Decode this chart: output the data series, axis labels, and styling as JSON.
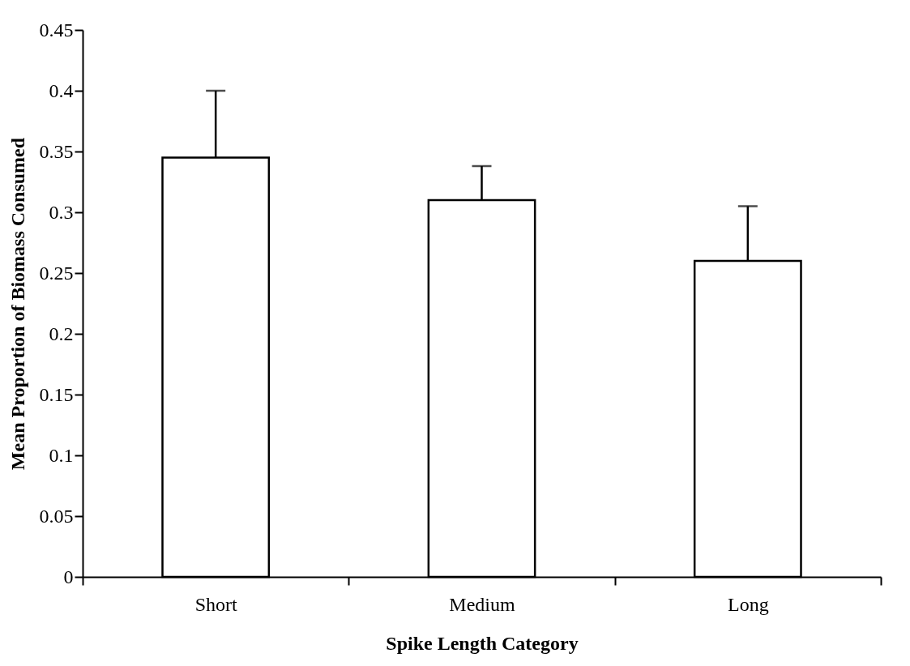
{
  "chart_data": {
    "type": "bar",
    "xlabel": "Spike Length Category",
    "ylabel": "Mean Proportion of Biomass Consumed",
    "categories": [
      "Short",
      "Medium",
      "Long"
    ],
    "values": [
      0.345,
      0.31,
      0.26
    ],
    "errors": [
      [
        0.345,
        0.4
      ],
      [
        0.31,
        0.338
      ],
      [
        0.26,
        0.305
      ]
    ],
    "color": "#ffffff",
    "ylim": [
      0,
      0.45
    ],
    "yticks": [
      0,
      0.05,
      0.1,
      0.15,
      0.2,
      0.25,
      0.3,
      0.35,
      0.4,
      0.45
    ],
    "grid": false
  }
}
